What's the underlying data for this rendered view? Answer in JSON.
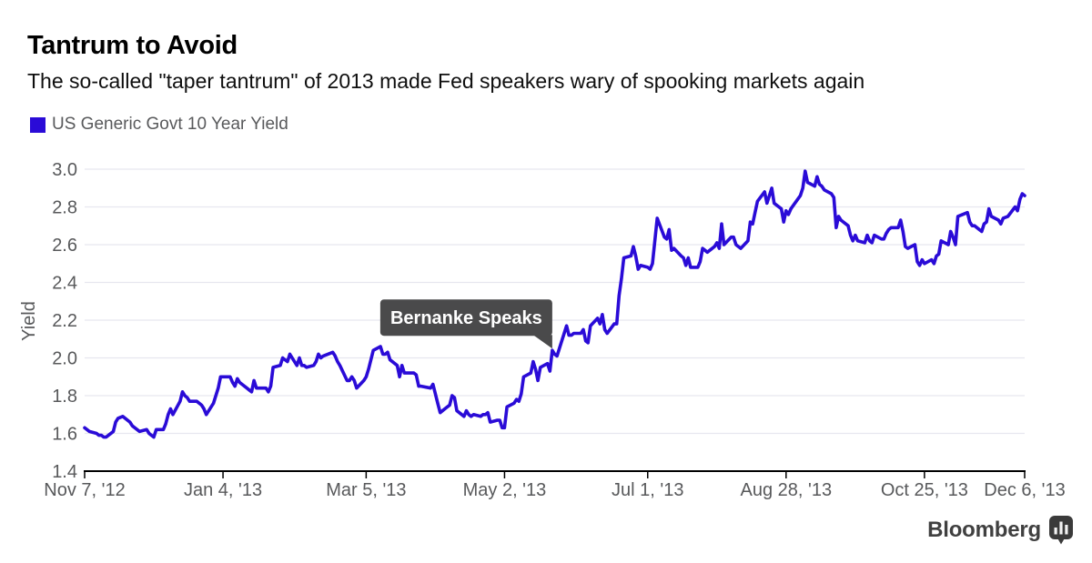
{
  "header": {
    "title": "Tantrum to Avoid",
    "subtitle": "The so-called \"taper tantrum\" of 2013 made Fed speakers wary of spooking markets again"
  },
  "legend": {
    "label": "US Generic Govt 10 Year Yield",
    "swatch_color": "#2a0bd7"
  },
  "footer": {
    "brand": "Bloomberg",
    "icon": "bloomberg-chart-bubble-icon"
  },
  "chart_data": {
    "type": "line",
    "title": "Tantrum to Avoid",
    "series_name": "US Generic Govt 10 Year Yield",
    "ylabel": "Yield",
    "ylim": [
      1.4,
      3.0
    ],
    "yticks": [
      1.4,
      1.6,
      1.8,
      2.0,
      2.2,
      2.4,
      2.6,
      2.8,
      3.0
    ],
    "grid": true,
    "legend_position": "top-left",
    "line_color": "#2a0bd7",
    "grid_color": "#e7e7ef",
    "axis_color": "#000000",
    "tick_text_color": "#58595b",
    "x_unit": "calendar days since Nov 7, 2012",
    "x_total_days": 394,
    "xticks": [
      {
        "d": 0,
        "label": "Nov 7, '12"
      },
      {
        "d": 58,
        "label": "Jan 4, '13"
      },
      {
        "d": 118,
        "label": "Mar 5, '13"
      },
      {
        "d": 176,
        "label": "May 2, '13"
      },
      {
        "d": 236,
        "label": "Jul 1, '13"
      },
      {
        "d": 294,
        "label": "Aug 28, '13"
      },
      {
        "d": 352,
        "label": "Oct 25, '13"
      },
      {
        "d": 394,
        "label": "Dec 6, '13"
      }
    ],
    "annotation": {
      "label": "Bernanke Speaks",
      "d": 196,
      "value": 2.04,
      "bg": "#4a4a4b",
      "text_color": "#ffffff"
    },
    "points": [
      [
        0,
        1.63
      ],
      [
        1,
        1.62
      ],
      [
        2,
        1.61
      ],
      [
        5,
        1.6
      ],
      [
        6,
        1.59
      ],
      [
        7,
        1.59
      ],
      [
        8,
        1.58
      ],
      [
        9,
        1.58
      ],
      [
        12,
        1.61
      ],
      [
        13,
        1.66
      ],
      [
        14,
        1.68
      ],
      [
        16,
        1.69
      ],
      [
        19,
        1.66
      ],
      [
        20,
        1.64
      ],
      [
        21,
        1.63
      ],
      [
        22,
        1.62
      ],
      [
        23,
        1.61
      ],
      [
        26,
        1.62
      ],
      [
        27,
        1.6
      ],
      [
        28,
        1.59
      ],
      [
        29,
        1.58
      ],
      [
        30,
        1.62
      ],
      [
        33,
        1.62
      ],
      [
        34,
        1.65
      ],
      [
        35,
        1.7
      ],
      [
        36,
        1.73
      ],
      [
        37,
        1.7
      ],
      [
        40,
        1.77
      ],
      [
        41,
        1.82
      ],
      [
        42,
        1.8
      ],
      [
        43,
        1.79
      ],
      [
        44,
        1.77
      ],
      [
        47,
        1.77
      ],
      [
        49,
        1.75
      ],
      [
        50,
        1.73
      ],
      [
        51,
        1.7
      ],
      [
        54,
        1.76
      ],
      [
        56,
        1.84
      ],
      [
        57,
        1.9
      ],
      [
        58,
        1.9
      ],
      [
        61,
        1.9
      ],
      [
        62,
        1.87
      ],
      [
        63,
        1.85
      ],
      [
        64,
        1.89
      ],
      [
        65,
        1.87
      ],
      [
        68,
        1.84
      ],
      [
        69,
        1.83
      ],
      [
        70,
        1.82
      ],
      [
        71,
        1.88
      ],
      [
        72,
        1.84
      ],
      [
        76,
        1.84
      ],
      [
        77,
        1.82
      ],
      [
        78,
        1.85
      ],
      [
        79,
        1.95
      ],
      [
        82,
        1.96
      ],
      [
        83,
        2.0
      ],
      [
        84,
        1.99
      ],
      [
        85,
        1.98
      ],
      [
        86,
        2.02
      ],
      [
        89,
        1.96
      ],
      [
        90,
        2.0
      ],
      [
        91,
        1.96
      ],
      [
        92,
        1.96
      ],
      [
        93,
        1.95
      ],
      [
        96,
        1.96
      ],
      [
        97,
        1.98
      ],
      [
        98,
        2.02
      ],
      [
        99,
        2.0
      ],
      [
        100,
        2.01
      ],
      [
        104,
        2.03
      ],
      [
        105,
        2.01
      ],
      [
        106,
        1.98
      ],
      [
        107,
        1.96
      ],
      [
        110,
        1.88
      ],
      [
        111,
        1.88
      ],
      [
        112,
        1.9
      ],
      [
        113,
        1.88
      ],
      [
        114,
        1.84
      ],
      [
        117,
        1.88
      ],
      [
        118,
        1.9
      ],
      [
        119,
        1.94
      ],
      [
        120,
        1.99
      ],
      [
        121,
        2.04
      ],
      [
        124,
        2.06
      ],
      [
        125,
        2.02
      ],
      [
        126,
        2.02
      ],
      [
        127,
        2.03
      ],
      [
        128,
        1.99
      ],
      [
        131,
        1.96
      ],
      [
        132,
        1.9
      ],
      [
        133,
        1.96
      ],
      [
        134,
        1.92
      ],
      [
        135,
        1.92
      ],
      [
        138,
        1.92
      ],
      [
        139,
        1.91
      ],
      [
        140,
        1.85
      ],
      [
        141,
        1.85
      ],
      [
        145,
        1.84
      ],
      [
        146,
        1.86
      ],
      [
        147,
        1.81
      ],
      [
        148,
        1.76
      ],
      [
        149,
        1.71
      ],
      [
        152,
        1.74
      ],
      [
        153,
        1.75
      ],
      [
        154,
        1.8
      ],
      [
        155,
        1.79
      ],
      [
        156,
        1.72
      ],
      [
        159,
        1.69
      ],
      [
        160,
        1.72
      ],
      [
        161,
        1.7
      ],
      [
        162,
        1.69
      ],
      [
        163,
        1.7
      ],
      [
        166,
        1.69
      ],
      [
        167,
        1.7
      ],
      [
        168,
        1.7
      ],
      [
        169,
        1.71
      ],
      [
        170,
        1.66
      ],
      [
        173,
        1.67
      ],
      [
        174,
        1.67
      ],
      [
        175,
        1.63
      ],
      [
        176,
        1.63
      ],
      [
        177,
        1.74
      ],
      [
        180,
        1.76
      ],
      [
        181,
        1.78
      ],
      [
        182,
        1.77
      ],
      [
        183,
        1.81
      ],
      [
        184,
        1.9
      ],
      [
        187,
        1.92
      ],
      [
        188,
        1.98
      ],
      [
        189,
        1.94
      ],
      [
        190,
        1.88
      ],
      [
        191,
        1.95
      ],
      [
        194,
        1.97
      ],
      [
        195,
        1.93
      ],
      [
        196,
        2.04
      ],
      [
        197,
        2.02
      ],
      [
        198,
        2.01
      ],
      [
        202,
        2.17
      ],
      [
        203,
        2.12
      ],
      [
        204,
        2.12
      ],
      [
        205,
        2.13
      ],
      [
        208,
        2.13
      ],
      [
        209,
        2.15
      ],
      [
        210,
        2.09
      ],
      [
        211,
        2.08
      ],
      [
        212,
        2.17
      ],
      [
        215,
        2.21
      ],
      [
        216,
        2.18
      ],
      [
        217,
        2.23
      ],
      [
        218,
        2.15
      ],
      [
        219,
        2.13
      ],
      [
        222,
        2.18
      ],
      [
        223,
        2.18
      ],
      [
        224,
        2.33
      ],
      [
        225,
        2.42
      ],
      [
        226,
        2.53
      ],
      [
        229,
        2.54
      ],
      [
        230,
        2.59
      ],
      [
        231,
        2.54
      ],
      [
        232,
        2.47
      ],
      [
        233,
        2.49
      ],
      [
        236,
        2.48
      ],
      [
        237,
        2.47
      ],
      [
        238,
        2.5
      ],
      [
        240,
        2.74
      ],
      [
        243,
        2.64
      ],
      [
        244,
        2.63
      ],
      [
        245,
        2.68
      ],
      [
        246,
        2.57
      ],
      [
        247,
        2.58
      ],
      [
        250,
        2.54
      ],
      [
        251,
        2.53
      ],
      [
        252,
        2.49
      ],
      [
        253,
        2.53
      ],
      [
        254,
        2.48
      ],
      [
        257,
        2.48
      ],
      [
        258,
        2.51
      ],
      [
        259,
        2.58
      ],
      [
        260,
        2.57
      ],
      [
        261,
        2.56
      ],
      [
        264,
        2.59
      ],
      [
        265,
        2.61
      ],
      [
        266,
        2.58
      ],
      [
        267,
        2.71
      ],
      [
        268,
        2.6
      ],
      [
        271,
        2.64
      ],
      [
        272,
        2.64
      ],
      [
        273,
        2.6
      ],
      [
        274,
        2.59
      ],
      [
        275,
        2.58
      ],
      [
        278,
        2.62
      ],
      [
        279,
        2.72
      ],
      [
        280,
        2.71
      ],
      [
        281,
        2.77
      ],
      [
        282,
        2.83
      ],
      [
        285,
        2.88
      ],
      [
        286,
        2.82
      ],
      [
        287,
        2.86
      ],
      [
        288,
        2.9
      ],
      [
        289,
        2.82
      ],
      [
        292,
        2.79
      ],
      [
        293,
        2.72
      ],
      [
        294,
        2.78
      ],
      [
        295,
        2.76
      ],
      [
        296,
        2.79
      ],
      [
        300,
        2.86
      ],
      [
        301,
        2.9
      ],
      [
        302,
        2.99
      ],
      [
        303,
        2.93
      ],
      [
        306,
        2.91
      ],
      [
        307,
        2.96
      ],
      [
        308,
        2.92
      ],
      [
        309,
        2.91
      ],
      [
        310,
        2.89
      ],
      [
        313,
        2.87
      ],
      [
        314,
        2.85
      ],
      [
        315,
        2.69
      ],
      [
        316,
        2.75
      ],
      [
        317,
        2.73
      ],
      [
        320,
        2.7
      ],
      [
        321,
        2.65
      ],
      [
        322,
        2.62
      ],
      [
        323,
        2.65
      ],
      [
        324,
        2.62
      ],
      [
        327,
        2.61
      ],
      [
        328,
        2.65
      ],
      [
        329,
        2.62
      ],
      [
        330,
        2.61
      ],
      [
        331,
        2.65
      ],
      [
        334,
        2.63
      ],
      [
        335,
        2.63
      ],
      [
        336,
        2.66
      ],
      [
        337,
        2.68
      ],
      [
        338,
        2.69
      ],
      [
        341,
        2.69
      ],
      [
        342,
        2.73
      ],
      [
        343,
        2.67
      ],
      [
        344,
        2.59
      ],
      [
        345,
        2.58
      ],
      [
        348,
        2.6
      ],
      [
        349,
        2.51
      ],
      [
        350,
        2.49
      ],
      [
        351,
        2.52
      ],
      [
        352,
        2.5
      ],
      [
        355,
        2.52
      ],
      [
        356,
        2.5
      ],
      [
        357,
        2.54
      ],
      [
        358,
        2.55
      ],
      [
        359,
        2.62
      ],
      [
        362,
        2.6
      ],
      [
        363,
        2.67
      ],
      [
        364,
        2.64
      ],
      [
        365,
        2.6
      ],
      [
        366,
        2.75
      ],
      [
        370,
        2.77
      ],
      [
        371,
        2.72
      ],
      [
        372,
        2.7
      ],
      [
        373,
        2.7
      ],
      [
        376,
        2.67
      ],
      [
        377,
        2.71
      ],
      [
        378,
        2.72
      ],
      [
        379,
        2.79
      ],
      [
        380,
        2.75
      ],
      [
        383,
        2.73
      ],
      [
        384,
        2.71
      ],
      [
        385,
        2.74
      ],
      [
        387,
        2.75
      ],
      [
        390,
        2.8
      ],
      [
        391,
        2.78
      ],
      [
        392,
        2.84
      ],
      [
        393,
        2.87
      ],
      [
        394,
        2.86
      ]
    ]
  }
}
